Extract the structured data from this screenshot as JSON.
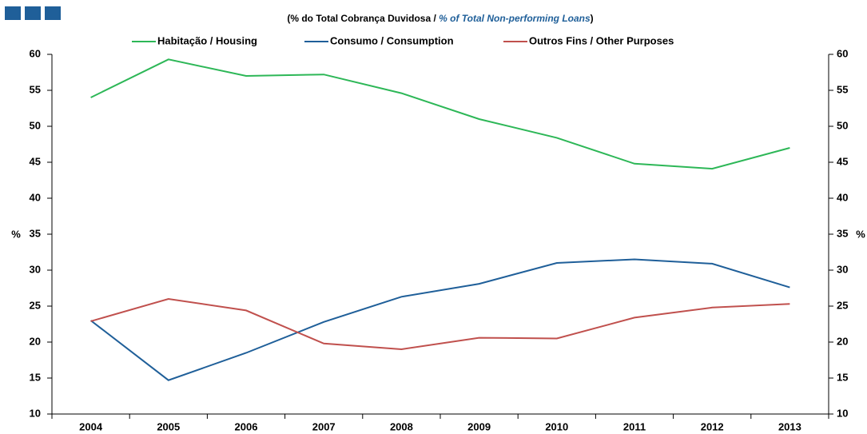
{
  "chart_data": {
    "type": "line",
    "subtitle": [
      "(% do Total Cobrança Duvidosa  / ",
      "% of Total Non-performing Loans",
      ")"
    ],
    "y_label": "%",
    "y2_label": "%",
    "categories": [
      "2004",
      "2005",
      "2006",
      "2007",
      "2008",
      "2009",
      "2010",
      "2011",
      "2012",
      "2013"
    ],
    "series": [
      {
        "name": "Habitação / Housing",
        "color": "#2db757",
        "values": [
          54.0,
          59.3,
          57.0,
          57.2,
          54.6,
          51.0,
          48.4,
          44.8,
          44.1,
          47.0
        ]
      },
      {
        "name": "Consumo / Consumption",
        "color": "#1f5f99",
        "values": [
          23.0,
          14.7,
          18.5,
          22.8,
          26.3,
          28.1,
          31.0,
          31.5,
          30.9,
          27.6
        ]
      },
      {
        "name": "Outros Fins / Other Purposes",
        "color": "#c0504d",
        "values": [
          22.9,
          26.0,
          24.4,
          19.8,
          19.0,
          20.6,
          20.5,
          23.4,
          24.8,
          25.3
        ]
      }
    ],
    "ylim": [
      10,
      60
    ],
    "yticks": [
      10,
      15,
      20,
      25,
      30,
      35,
      40,
      45,
      50,
      55,
      60
    ],
    "y2lim": [
      10,
      60
    ],
    "y2ticks": [
      10,
      15,
      20,
      25,
      30,
      35,
      40,
      45,
      50,
      55,
      60
    ],
    "grid": false
  }
}
